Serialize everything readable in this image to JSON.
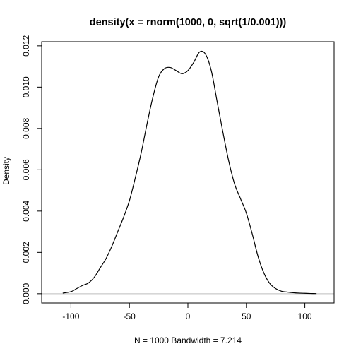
{
  "chart_data": {
    "type": "line",
    "title": "density(x = rnorm(1000, 0, sqrt(1/0.001)))",
    "xlabel": "N = 1000   Bandwidth = 7.214",
    "ylabel": "Density",
    "xlim": [
      -125,
      125
    ],
    "ylim": [
      -0.00045,
      0.0122
    ],
    "x_ticks": [
      -100,
      -50,
      0,
      50,
      100
    ],
    "x_tick_labels": [
      "-100",
      "-50",
      "0",
      "50",
      "100"
    ],
    "y_ticks": [
      0,
      0.002,
      0.004,
      0.006,
      0.008,
      0.01,
      0.012
    ],
    "y_tick_labels": [
      "0.000",
      "0.002",
      "0.004",
      "0.006",
      "0.008",
      "0.010",
      "0.012"
    ],
    "baseline": 0,
    "baseline_color": "#bebebe",
    "line_color": "#000000",
    "grid": false,
    "series": [
      {
        "x": [
          -107,
          -100,
          -95,
          -90,
          -85,
          -80,
          -75,
          -70,
          -65,
          -60,
          -55,
          -50,
          -45,
          -40,
          -35,
          -30,
          -25,
          -20,
          -15,
          -10,
          -5,
          0,
          5,
          10,
          15,
          20,
          25,
          30,
          35,
          40,
          45,
          50,
          55,
          60,
          65,
          70,
          75,
          80,
          85,
          90,
          95,
          100,
          105,
          110
        ],
        "y": [
          3e-05,
          0.0001,
          0.00025,
          0.0004,
          0.00052,
          0.0008,
          0.00125,
          0.0017,
          0.0023,
          0.003,
          0.0037,
          0.0045,
          0.0056,
          0.0068,
          0.0082,
          0.0095,
          0.0105,
          0.0109,
          0.01095,
          0.0108,
          0.01065,
          0.0108,
          0.0112,
          0.0117,
          0.0116,
          0.0108,
          0.0093,
          0.0078,
          0.0064,
          0.0053,
          0.0046,
          0.0039,
          0.0029,
          0.0018,
          0.001,
          0.0005,
          0.00025,
          0.00012,
          8e-05,
          5e-05,
          3e-05,
          2e-05,
          1e-05,
          5e-06
        ]
      }
    ]
  }
}
